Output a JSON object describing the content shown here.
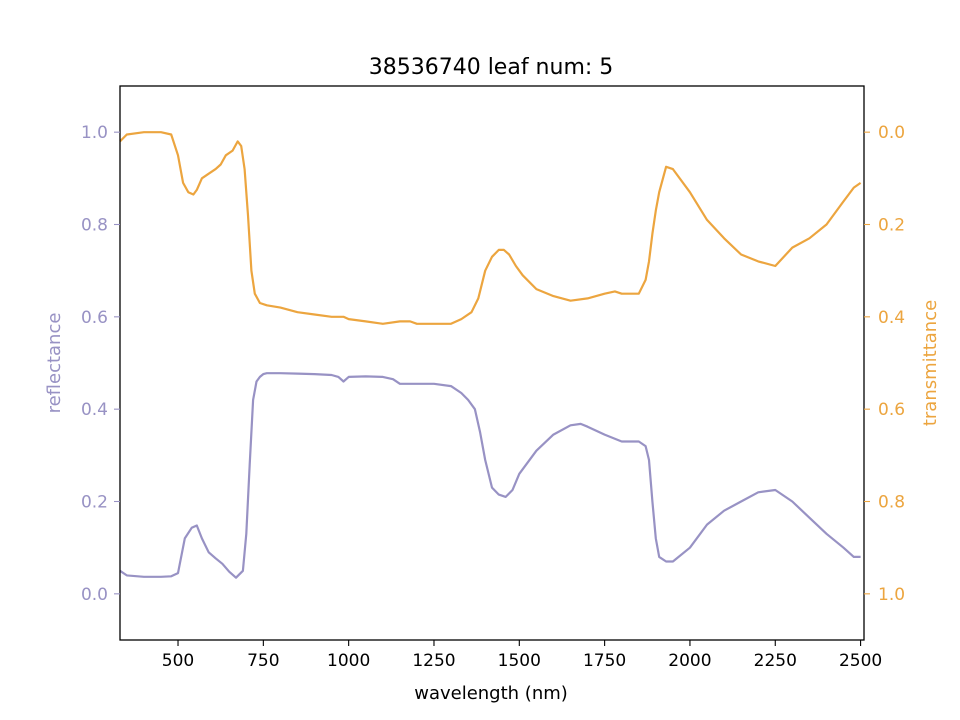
{
  "chart_data": {
    "type": "line",
    "title": "38536740 leaf num: 5",
    "xlabel": "wavelength (nm)",
    "ylabel_left": "reflectance",
    "ylabel_right": "transmittance",
    "xlim": [
      330,
      2510
    ],
    "ylim_left": [
      -0.1,
      1.1
    ],
    "ylim_right_inverted": [
      1.1,
      -0.1
    ],
    "x_ticks": [
      "500",
      "750",
      "1000",
      "1250",
      "1500",
      "1750",
      "2000",
      "2250",
      "2500"
    ],
    "y_left_ticks": [
      "0.0",
      "0.2",
      "0.4",
      "0.6",
      "0.8",
      "1.0"
    ],
    "y_right_ticks": [
      "0.0",
      "0.2",
      "0.4",
      "0.6",
      "0.8",
      "1.0"
    ],
    "grid": false,
    "colors": {
      "reflectance": "#9892c4",
      "transmittance": "#eca53f"
    },
    "series": [
      {
        "key": "reflectance",
        "axis": "left",
        "x": [
          330,
          350,
          400,
          450,
          480,
          500,
          520,
          540,
          555,
          570,
          590,
          610,
          630,
          650,
          670,
          690,
          700,
          710,
          720,
          730,
          740,
          750,
          760,
          780,
          800,
          850,
          900,
          950,
          970,
          985,
          1000,
          1050,
          1100,
          1130,
          1150,
          1200,
          1250,
          1300,
          1330,
          1350,
          1370,
          1385,
          1400,
          1420,
          1440,
          1460,
          1480,
          1500,
          1550,
          1600,
          1650,
          1680,
          1700,
          1750,
          1800,
          1850,
          1870,
          1880,
          1890,
          1900,
          1910,
          1930,
          1950,
          2000,
          2050,
          2100,
          2150,
          2200,
          2250,
          2300,
          2350,
          2400,
          2450,
          2480,
          2500
        ],
        "y": [
          0.05,
          0.04,
          0.037,
          0.037,
          0.038,
          0.045,
          0.12,
          0.143,
          0.148,
          0.12,
          0.09,
          0.077,
          0.065,
          0.048,
          0.035,
          0.05,
          0.13,
          0.28,
          0.42,
          0.46,
          0.47,
          0.476,
          0.478,
          0.478,
          0.478,
          0.477,
          0.476,
          0.474,
          0.47,
          0.46,
          0.47,
          0.471,
          0.47,
          0.465,
          0.455,
          0.455,
          0.455,
          0.45,
          0.435,
          0.42,
          0.4,
          0.35,
          0.29,
          0.23,
          0.215,
          0.21,
          0.225,
          0.26,
          0.31,
          0.345,
          0.365,
          0.368,
          0.362,
          0.345,
          0.33,
          0.33,
          0.32,
          0.29,
          0.2,
          0.12,
          0.08,
          0.07,
          0.07,
          0.1,
          0.15,
          0.18,
          0.2,
          0.22,
          0.225,
          0.2,
          0.165,
          0.13,
          0.1,
          0.08,
          0.08
        ]
      },
      {
        "key": "transmittance",
        "axis": "right",
        "x": [
          330,
          350,
          400,
          450,
          480,
          500,
          515,
          530,
          545,
          555,
          570,
          590,
          610,
          625,
          640,
          660,
          675,
          685,
          695,
          705,
          715,
          725,
          740,
          760,
          800,
          850,
          900,
          950,
          970,
          985,
          1000,
          1050,
          1100,
          1150,
          1180,
          1200,
          1250,
          1300,
          1330,
          1360,
          1380,
          1400,
          1420,
          1440,
          1455,
          1470,
          1490,
          1510,
          1550,
          1600,
          1650,
          1700,
          1750,
          1780,
          1800,
          1850,
          1870,
          1880,
          1890,
          1900,
          1910,
          1930,
          1950,
          2000,
          2050,
          2100,
          2150,
          2200,
          2250,
          2300,
          2350,
          2400,
          2450,
          2480,
          2500
        ],
        "y": [
          0.02,
          0.005,
          0.0,
          0.0,
          0.005,
          0.05,
          0.11,
          0.13,
          0.135,
          0.125,
          0.1,
          0.09,
          0.08,
          0.07,
          0.05,
          0.04,
          0.02,
          0.03,
          0.08,
          0.18,
          0.3,
          0.35,
          0.37,
          0.375,
          0.38,
          0.39,
          0.395,
          0.4,
          0.4,
          0.4,
          0.405,
          0.41,
          0.415,
          0.41,
          0.41,
          0.415,
          0.415,
          0.415,
          0.405,
          0.39,
          0.36,
          0.3,
          0.27,
          0.255,
          0.255,
          0.265,
          0.29,
          0.31,
          0.34,
          0.355,
          0.365,
          0.36,
          0.35,
          0.345,
          0.35,
          0.35,
          0.32,
          0.28,
          0.22,
          0.17,
          0.13,
          0.075,
          0.08,
          0.13,
          0.19,
          0.23,
          0.265,
          0.28,
          0.29,
          0.25,
          0.23,
          0.2,
          0.15,
          0.12,
          0.11
        ]
      }
    ]
  }
}
